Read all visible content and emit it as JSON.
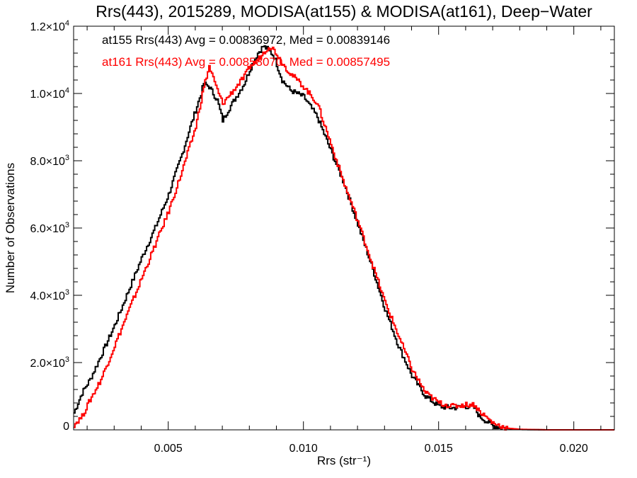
{
  "chart_data": {
    "type": "line",
    "title": "Rrs(443), 2015289, MODISA(at155) & MODISA(at161), Deep−Water",
    "xlabel": "Rrs (str⁻¹)",
    "ylabel": "Number of Observations",
    "xlim": [
      0.0015,
      0.0215
    ],
    "ylim": [
      0,
      12000
    ],
    "x_ticks": [
      {
        "value": 0.005,
        "label": "0.005"
      },
      {
        "value": 0.01,
        "label": "0.010"
      },
      {
        "value": 0.015,
        "label": "0.015"
      },
      {
        "value": 0.02,
        "label": "0.020"
      }
    ],
    "y_ticks": [
      {
        "value": 0,
        "mant": "0",
        "exp": ""
      },
      {
        "value": 2000,
        "mant": "2.0×10",
        "exp": "3"
      },
      {
        "value": 4000,
        "mant": "4.0×10",
        "exp": "3"
      },
      {
        "value": 6000,
        "mant": "6.0×10",
        "exp": "3"
      },
      {
        "value": 8000,
        "mant": "8.0×10",
        "exp": "3"
      },
      {
        "value": 10000,
        "mant": "1.0×10",
        "exp": "4"
      },
      {
        "value": 12000,
        "mant": "1.2×10",
        "exp": "4"
      }
    ],
    "grid": false,
    "annotations": [
      "at155 Rrs(443) Avg = 0.00836972, Med = 0.00839146",
      "at161 Rrs(443) Avg = 0.00858070, Med = 0.00857495"
    ],
    "colors": {
      "at155": "#000000",
      "at161": "#ff0000"
    },
    "series": [
      {
        "color": "#000000",
        "points": [
          [
            0.0015,
            500
          ],
          [
            0.0018,
            1100
          ],
          [
            0.0021,
            1500
          ],
          [
            0.0025,
            2200
          ],
          [
            0.003,
            3100
          ],
          [
            0.0035,
            4100
          ],
          [
            0.004,
            5100
          ],
          [
            0.0045,
            6000
          ],
          [
            0.005,
            7000
          ],
          [
            0.0055,
            8200
          ],
          [
            0.0058,
            9000
          ],
          [
            0.006,
            9500
          ],
          [
            0.0062,
            10000
          ],
          [
            0.0063,
            10300
          ],
          [
            0.0065,
            10200
          ],
          [
            0.0068,
            9800
          ],
          [
            0.007,
            9200
          ],
          [
            0.0072,
            9500
          ],
          [
            0.0075,
            9900
          ],
          [
            0.0078,
            10300
          ],
          [
            0.008,
            10700
          ],
          [
            0.0083,
            11200
          ],
          [
            0.0085,
            11400
          ],
          [
            0.0087,
            11300
          ],
          [
            0.0089,
            11100
          ],
          [
            0.0092,
            10400
          ],
          [
            0.0095,
            10100
          ],
          [
            0.01,
            9900
          ],
          [
            0.0105,
            9300
          ],
          [
            0.011,
            8300
          ],
          [
            0.0115,
            7300
          ],
          [
            0.012,
            6100
          ],
          [
            0.0125,
            4900
          ],
          [
            0.013,
            3600
          ],
          [
            0.0135,
            2500
          ],
          [
            0.014,
            1600
          ],
          [
            0.0145,
            1000
          ],
          [
            0.015,
            700
          ],
          [
            0.0155,
            650
          ],
          [
            0.016,
            700
          ],
          [
            0.0163,
            650
          ],
          [
            0.0165,
            400
          ],
          [
            0.017,
            120
          ],
          [
            0.0175,
            40
          ],
          [
            0.018,
            10
          ],
          [
            0.019,
            0
          ],
          [
            0.0215,
            0
          ]
        ]
      },
      {
        "color": "#ff0000",
        "points": [
          [
            0.0015,
            150
          ],
          [
            0.0018,
            400
          ],
          [
            0.0021,
            900
          ],
          [
            0.0025,
            1500
          ],
          [
            0.003,
            2500
          ],
          [
            0.0035,
            3500
          ],
          [
            0.004,
            4500
          ],
          [
            0.0045,
            5500
          ],
          [
            0.005,
            6500
          ],
          [
            0.0055,
            7700
          ],
          [
            0.006,
            9000
          ],
          [
            0.0062,
            9800
          ],
          [
            0.0063,
            10200
          ],
          [
            0.0065,
            10800
          ],
          [
            0.0068,
            10100
          ],
          [
            0.007,
            9700
          ],
          [
            0.0072,
            9900
          ],
          [
            0.0075,
            10200
          ],
          [
            0.0078,
            10500
          ],
          [
            0.008,
            10800
          ],
          [
            0.0083,
            11000
          ],
          [
            0.0085,
            11200
          ],
          [
            0.0087,
            11400
          ],
          [
            0.0089,
            11300
          ],
          [
            0.0092,
            10900
          ],
          [
            0.0095,
            10600
          ],
          [
            0.01,
            10200
          ],
          [
            0.0105,
            9700
          ],
          [
            0.011,
            8500
          ],
          [
            0.0115,
            7300
          ],
          [
            0.012,
            6200
          ],
          [
            0.0125,
            5000
          ],
          [
            0.013,
            3800
          ],
          [
            0.0135,
            2800
          ],
          [
            0.014,
            1800
          ],
          [
            0.0145,
            1100
          ],
          [
            0.015,
            800
          ],
          [
            0.0155,
            700
          ],
          [
            0.016,
            750
          ],
          [
            0.0163,
            750
          ],
          [
            0.0165,
            550
          ],
          [
            0.017,
            200
          ],
          [
            0.0175,
            50
          ],
          [
            0.018,
            15
          ],
          [
            0.019,
            0
          ],
          [
            0.0215,
            0
          ]
        ]
      }
    ]
  }
}
